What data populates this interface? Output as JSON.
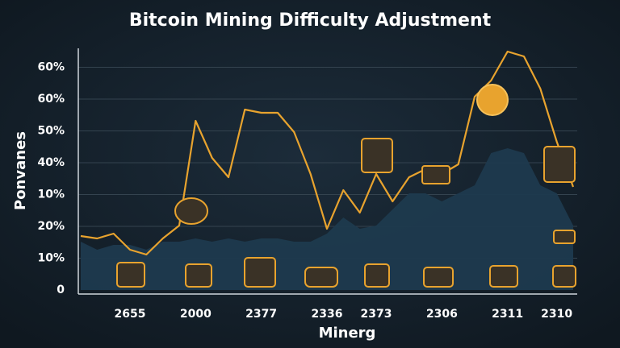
{
  "chart_data": {
    "type": "line",
    "title": "Bitcoin Mining Difficulty Adjustment",
    "x_label": "Minerg",
    "y_label": "Ponvanes",
    "y_labels": [
      "60%",
      "60%",
      "50%",
      "40%",
      "10%",
      "20%",
      "10%",
      "0"
    ],
    "categories": [
      null,
      null,
      null,
      "2655",
      null,
      null,
      null,
      "2000",
      null,
      null,
      null,
      "2377",
      null,
      null,
      null,
      "2336",
      null,
      null,
      "2373",
      null,
      null,
      null,
      "2306",
      null,
      null,
      null,
      "2311",
      null,
      null,
      "2310",
      null
    ],
    "ylim": [
      0,
      80
    ],
    "grid": true,
    "series": [
      {
        "color": "#1e3a4e",
        "area": true,
        "values": [
          15,
          12.5,
          14,
          14,
          12.5,
          15,
          15,
          16,
          15,
          16,
          15,
          16,
          16,
          15,
          15,
          17.5,
          22.5,
          19,
          20,
          25,
          30,
          30,
          27.5,
          30,
          32.5,
          42.5,
          44,
          42.5,
          32.5,
          30,
          20
        ]
      },
      {
        "color": "#e8a32e",
        "area": false,
        "values": [
          16.75,
          16,
          17.5,
          12.5,
          11,
          16,
          20,
          52.5,
          41,
          35,
          56,
          55,
          55,
          49,
          36,
          19,
          31,
          24,
          36,
          27.5,
          35,
          37.5,
          36,
          39,
          60,
          65,
          74,
          72.5,
          62.5,
          46,
          32
        ]
      }
    ]
  }
}
